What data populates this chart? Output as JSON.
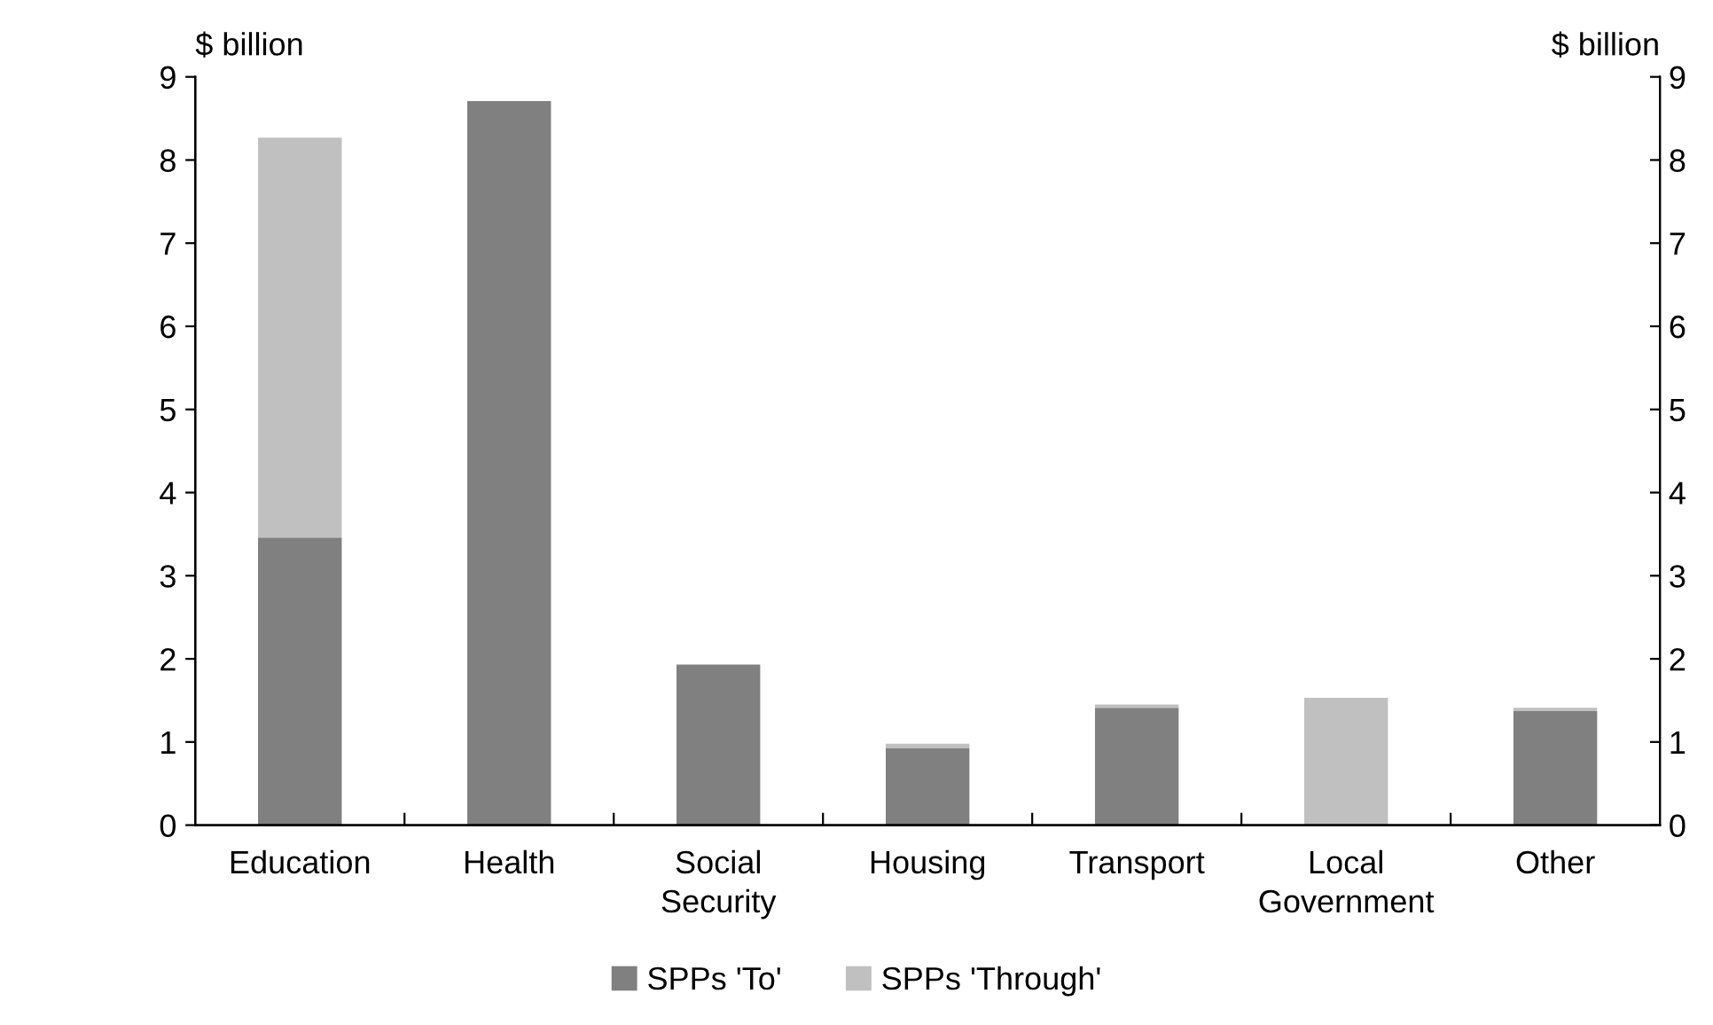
{
  "chart_data": {
    "type": "bar",
    "stacked": true,
    "ylabel": "$ billion",
    "y2label": "$ billion",
    "categories": [
      "Education",
      "Health",
      "Social\nSecurity",
      "Housing",
      "Transport",
      "Local\nGovernment",
      "Other"
    ],
    "series": [
      {
        "name": "SPPs 'To'",
        "color": "#808080",
        "values": [
          3.46,
          8.71,
          1.93,
          0.93,
          1.41,
          0,
          1.37
        ]
      },
      {
        "name": "SPPs 'Through'",
        "color": "#c0c0c0",
        "values": [
          4.81,
          0,
          0,
          0.05,
          0.04,
          1.53,
          0.04
        ]
      }
    ],
    "ylim": [
      0,
      9
    ],
    "yticks": [
      0,
      1,
      2,
      3,
      4,
      5,
      6,
      7,
      8,
      9
    ],
    "y2lim": [
      0,
      9
    ],
    "y2ticks": [
      0,
      1,
      2,
      3,
      4,
      5,
      6,
      7,
      8,
      9
    ],
    "legend": "bottom"
  }
}
